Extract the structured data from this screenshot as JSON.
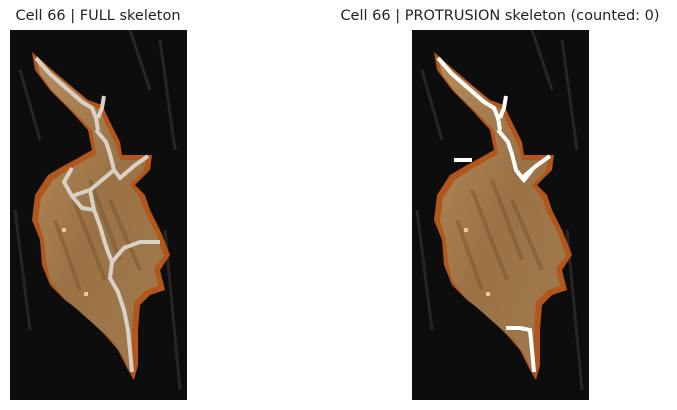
{
  "panels": [
    {
      "title": "Cell 66 | FULL skeleton"
    },
    {
      "title": "Cell 66 | PROTRUSION skeleton (counted: 0)"
    }
  ],
  "colors": {
    "background": "#0d0d0d",
    "cell_fill": "#a67d4f",
    "cell_outline": "#b2561b",
    "skeleton_full": "#d9d1c8",
    "skeleton_protrusion": "#ffffff"
  }
}
